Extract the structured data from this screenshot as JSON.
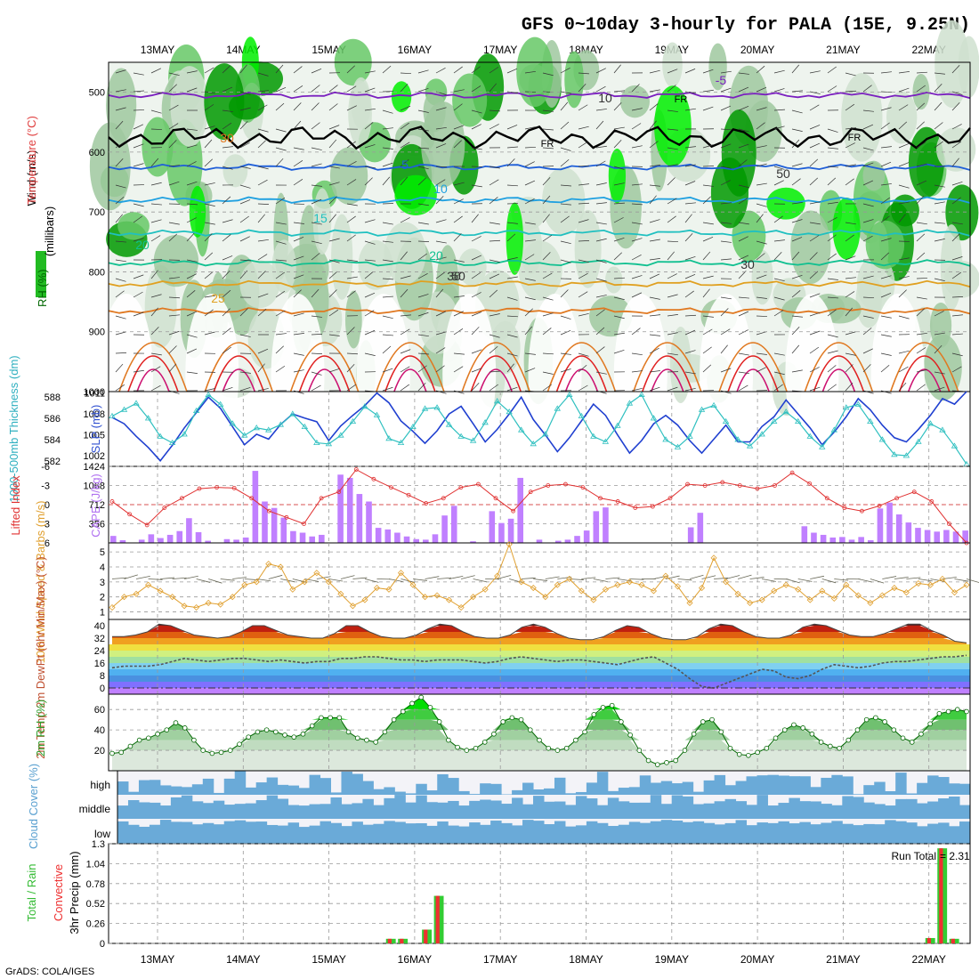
{
  "title": "GFS 0~10day 3-hourly for PALA (15E, 9.25N)",
  "footer": "GrADS: COLA/IGES",
  "dates": [
    "13MAY",
    "14MAY",
    "15MAY",
    "16MAY",
    "17MAY",
    "18MAY",
    "19MAY",
    "20MAY",
    "21MAY",
    "22MAY"
  ],
  "colors": {
    "rh_light": "#cfe0cf",
    "rh_mid": "#9fc89f",
    "rh_green": "#66c866",
    "rh_bright": "#00ee00",
    "rh_dark": "#009900",
    "t_cold": "#7a1fbf",
    "t_blue": "#1f5fd8",
    "t_lblue": "#1fa0e0",
    "t_cyan": "#20c0c0",
    "t_teal": "#10c090",
    "t_orange": "#e0a020",
    "t_dorange": "#e07820",
    "t_red": "#e02020",
    "t_magenta": "#cc1070",
    "freezing": "#000000",
    "cape": "#c080ff",
    "li": "#e03030",
    "slp": "#2040d0",
    "thick": "#30c0c0",
    "wind10": "#e0a030",
    "cloud": "#6aaad8",
    "rain_total": "#33cc33",
    "rain_conv": "#ee3030"
  },
  "chart_data": [
    {
      "type": "heatmap",
      "panel": "upper-air",
      "ylabel": "(millibars)",
      "ylim": [
        1000,
        450
      ],
      "yticks": [
        500,
        600,
        700,
        800,
        900,
        1000
      ],
      "legend_labels": {
        "rh": "RH (%)",
        "temperature": "Temperature (°C)",
        "wind": "Wind (m/s)"
      },
      "contour_labels": [
        "-5",
        "5",
        "10",
        "15",
        "20",
        "20",
        "25",
        "30",
        "FR",
        "FR",
        "FR",
        "10",
        "30",
        "50",
        "50",
        "30"
      ],
      "temperature_isotherms": [
        {
          "t": -5,
          "p": 505
        },
        {
          "t": 5,
          "p": 625
        },
        {
          "t": 10,
          "p": 680
        },
        {
          "t": 15,
          "p": 735
        },
        {
          "t": 20,
          "p": 785
        },
        {
          "t": 25,
          "p": 820
        },
        {
          "t": 30,
          "p": 865
        }
      ],
      "freezing_level_mb": 575
    },
    {
      "type": "line",
      "panel": "slp-thickness",
      "ylabel_left": "1000-500mb Thickness (dm)",
      "ylabel_right": "SLP (mb)",
      "ylim_left": [
        581.5,
        588.5
      ],
      "ylim_right": [
        1000.5,
        1011.2
      ],
      "yticks_left": [
        582,
        584,
        586,
        588
      ],
      "yticks_right": [
        1002,
        1005,
        1008,
        1011
      ],
      "series": [
        {
          "name": "SLP (mb)",
          "values": [
            1007.5,
            1006.6,
            1004.8,
            1003.2,
            1001.3,
            1003.5,
            1006.0,
            1008.2,
            1010.4,
            1008.8,
            1006.2,
            1003.6,
            1005.1,
            1004.4,
            1006.5,
            1008.0,
            1007.4,
            1006.9,
            1004.2,
            1006.3,
            1007.8,
            1009.2,
            1011.0,
            1009.6,
            1007.0,
            1005.5,
            1003.8,
            1005.6,
            1008.0,
            1009.1,
            1006.6,
            1004.0,
            1005.8,
            1008.0,
            1010.4,
            1007.2,
            1005.0,
            1002.6,
            1004.6,
            1007.0,
            1009.4,
            1007.8,
            1005.0,
            1002.4,
            1004.2,
            1006.6,
            1007.8,
            1006.4,
            1004.2,
            1002.4,
            1004.4,
            1006.4,
            1004.0,
            1004.0,
            1006.2,
            1007.6,
            1010.0,
            1008.0,
            1006.0,
            1003.6,
            1005.4,
            1007.6,
            1010.2,
            1008.6,
            1006.4,
            1004.6,
            1004.0,
            1005.8,
            1007.8,
            1010.2,
            1009.4,
            1011.2
          ]
        },
        {
          "name": "1000-500mb Thickness (dm)",
          "values": [
            586.2,
            586.8,
            587.4,
            586.0,
            584.3,
            583.7,
            584.5,
            586.7,
            588.2,
            587.3,
            585.5,
            584.4,
            585.1,
            584.9,
            585.4,
            586.4,
            585.2,
            583.7,
            583.6,
            584.4,
            585.7,
            587.1,
            586.3,
            584.1,
            583.7,
            585.2,
            586.9,
            587.0,
            585.4,
            584.3,
            583.9,
            585.6,
            587.6,
            586.6,
            584.9,
            583.6,
            584.5,
            586.9,
            588.2,
            586.2,
            584.3,
            583.8,
            585.3,
            587.4,
            588.2,
            586.0,
            584.0,
            583.3,
            584.3,
            586.8,
            587.2,
            585.7,
            584.0,
            583.4,
            584.5,
            585.7,
            586.6,
            585.7,
            584.3,
            583.3,
            584.9,
            587.0,
            587.3,
            585.7,
            584.0,
            582.6,
            582.5,
            583.8,
            585.5,
            584.9,
            583.4,
            581.7
          ]
        }
      ]
    },
    {
      "type": "bar",
      "panel": "cape-li",
      "ylabel_left": "Lifted Index",
      "ylabel_right": "CAPE (J/kg)",
      "ylim_right": [
        0,
        1424
      ],
      "yticks_right": [
        356,
        712,
        1068,
        1424
      ],
      "yticks_left": [
        6,
        3,
        0,
        -3,
        -6
      ],
      "series": [
        {
          "name": "CAPE (J/kg)",
          "values": [
            130,
            50,
            0,
            60,
            160,
            90,
            150,
            220,
            460,
            200,
            40,
            0,
            70,
            60,
            100,
            1340,
            770,
            650,
            470,
            220,
            190,
            120,
            150,
            0,
            1270,
            1210,
            910,
            770,
            280,
            250,
            190,
            120,
            70,
            60,
            160,
            510,
            690,
            0,
            30,
            0,
            590,
            370,
            450,
            1210,
            0,
            60,
            0,
            40,
            60,
            130,
            230,
            590,
            660,
            0,
            0,
            0,
            0,
            0,
            0,
            0,
            0,
            290,
            560,
            0,
            0,
            0,
            0,
            0,
            0,
            0,
            0,
            0,
            0,
            310,
            190,
            150,
            100,
            110,
            60,
            110,
            50,
            640,
            750,
            530,
            380,
            280,
            240,
            210,
            240,
            210,
            230
          ]
        },
        {
          "name": "Lifted Index",
          "values": [
            -0.5,
            1.5,
            3.2,
            0.5,
            -1.0,
            -2.5,
            -2.7,
            -2.6,
            -1.0,
            1.0,
            2.0,
            3.0,
            -1.0,
            -2.0,
            -5.5,
            -4.0,
            -2.7,
            -1.5,
            -0.2,
            -1.0,
            -2.7,
            -3.2,
            -1.0,
            1.0,
            -2.0,
            -3.0,
            -3.2,
            -2.7,
            -1.0,
            -0.5,
            0.5,
            0.3,
            -1.0,
            -3.2,
            -3.0,
            -3.5,
            -3.0,
            -2.5,
            -3.0,
            -5.0,
            -3.3,
            -1.0,
            0.5,
            1.0,
            0.2,
            -1.0,
            -2.0,
            -0.5,
            3.0,
            6.0
          ]
        }
      ]
    },
    {
      "type": "line",
      "panel": "wind10m",
      "ylabel": "10m Wind Speed & Barbs (m/s)",
      "ylim": [
        0.5,
        5.6
      ],
      "yticks": [
        1,
        2,
        3,
        4,
        5
      ],
      "series": [
        {
          "name": "10m Wind Speed",
          "values": [
            1.3,
            2.0,
            2.2,
            2.8,
            2.4,
            2.0,
            1.4,
            1.3,
            1.6,
            1.5,
            2.0,
            2.8,
            3.0,
            4.2,
            4.0,
            2.5,
            3.0,
            3.6,
            3.0,
            2.2,
            1.4,
            1.8,
            2.6,
            2.5,
            3.6,
            2.8,
            2.0,
            2.1,
            1.8,
            1.3,
            2.0,
            2.5,
            3.4,
            5.5,
            3.0,
            2.6,
            2.0,
            2.8,
            3.2,
            2.4,
            1.8,
            2.5,
            2.8,
            3.0,
            2.8,
            2.4,
            3.4,
            2.7,
            1.6,
            2.6,
            4.6,
            3.0,
            2.2,
            1.6,
            1.8,
            2.4,
            2.8,
            2.5,
            1.8,
            2.4,
            1.9,
            2.8,
            2.1,
            1.6,
            2.1,
            2.6,
            2.3,
            2.9,
            2.8,
            3.2,
            2.3,
            2.8
          ]
        }
      ]
    },
    {
      "type": "area",
      "panel": "temp2m",
      "ylabel": "2m Temp 2m DewPt (6hr Min/Max) (°C)",
      "ylim": [
        -4,
        44
      ],
      "yticks": [
        0,
        8,
        16,
        24,
        32,
        40
      ],
      "series": [
        {
          "name": "2m Temp",
          "values": [
            33,
            33,
            34,
            36,
            41,
            40,
            37,
            34,
            33,
            32,
            33,
            36,
            40,
            40,
            37,
            34,
            33,
            32,
            32,
            35,
            40,
            40,
            36,
            33,
            32,
            32,
            34,
            38,
            41,
            40,
            36,
            33,
            32,
            32,
            34,
            39,
            41,
            39,
            35,
            32,
            31,
            31,
            33,
            37,
            40,
            39,
            35,
            32,
            31,
            31,
            33,
            38,
            41,
            40,
            36,
            33,
            32,
            32,
            34,
            39,
            41,
            40,
            37,
            34,
            33,
            33,
            35,
            38,
            41,
            41,
            37,
            34,
            30,
            29
          ]
        },
        {
          "name": "2m DewPt",
          "values": [
            13,
            14,
            14,
            14,
            15,
            17,
            19,
            18,
            17,
            18,
            19,
            19,
            18,
            17,
            18,
            17,
            16,
            17,
            17,
            19,
            19,
            20,
            20,
            19,
            18,
            18,
            17,
            18,
            18,
            18,
            17,
            16,
            17,
            19,
            20,
            19,
            18,
            17,
            18,
            18,
            17,
            16,
            15,
            17,
            19,
            20,
            16,
            12,
            6,
            1,
            0,
            3,
            6,
            9,
            12,
            11,
            7,
            6,
            8,
            12,
            15,
            14,
            13,
            14,
            16,
            17,
            17,
            18,
            19,
            20,
            20,
            21
          ]
        }
      ]
    },
    {
      "type": "area",
      "panel": "rh2m",
      "ylabel": "2m RH (%)",
      "ylim": [
        0,
        75
      ],
      "yticks": [
        20,
        40,
        60
      ],
      "series": [
        {
          "name": "2m RH",
          "values": [
            17,
            18,
            24,
            30,
            32,
            36,
            40,
            47,
            42,
            30,
            20,
            17,
            18,
            20,
            26,
            33,
            38,
            40,
            38,
            35,
            33,
            36,
            44,
            52,
            52,
            52,
            38,
            32,
            30,
            28,
            38,
            50,
            58,
            66,
            72,
            62,
            48,
            30,
            23,
            20,
            22,
            28,
            36,
            48,
            52,
            50,
            40,
            30,
            22,
            20,
            22,
            30,
            38,
            55,
            62,
            64,
            48,
            35,
            20,
            10,
            6,
            8,
            10,
            20,
            36,
            48,
            50,
            38,
            22,
            16,
            15,
            18,
            22,
            32,
            40,
            45,
            42,
            36,
            28,
            24,
            22,
            30,
            40,
            50,
            52,
            48,
            40,
            32,
            28,
            36,
            46,
            56,
            58,
            60,
            58
          ]
        }
      ]
    },
    {
      "type": "heatmap",
      "panel": "cloud",
      "ylabel": "Cloud Cover (%)",
      "rows": [
        "high",
        "middle",
        "low"
      ]
    },
    {
      "type": "bar",
      "panel": "precip",
      "ylabel": "3hr Precip (mm)",
      "ylim": [
        0,
        1.3
      ],
      "yticks": [
        0,
        0.26,
        0.52,
        0.78,
        1.04,
        1.3
      ],
      "legend": [
        "Total / Rain",
        "Convective"
      ],
      "run_total_label": "Run Total",
      "run_total": "2.31",
      "series": [
        {
          "name": "Total / Rain",
          "values": [
            {
              "i": 23,
              "v": 0.06
            },
            {
              "i": 24,
              "v": 0.06
            },
            {
              "i": 26,
              "v": 0.18
            },
            {
              "i": 27,
              "v": 0.62
            },
            {
              "i": 68,
              "v": 0.07
            },
            {
              "i": 69,
              "v": 1.24
            },
            {
              "i": 70,
              "v": 0.06
            }
          ]
        },
        {
          "name": "Convective",
          "values": [
            {
              "i": 23,
              "v": 0.06
            },
            {
              "i": 24,
              "v": 0.06
            },
            {
              "i": 26,
              "v": 0.18
            },
            {
              "i": 27,
              "v": 0.62
            },
            {
              "i": 68,
              "v": 0.07
            },
            {
              "i": 69,
              "v": 1.24
            },
            {
              "i": 70,
              "v": 0.06
            }
          ]
        }
      ]
    }
  ]
}
